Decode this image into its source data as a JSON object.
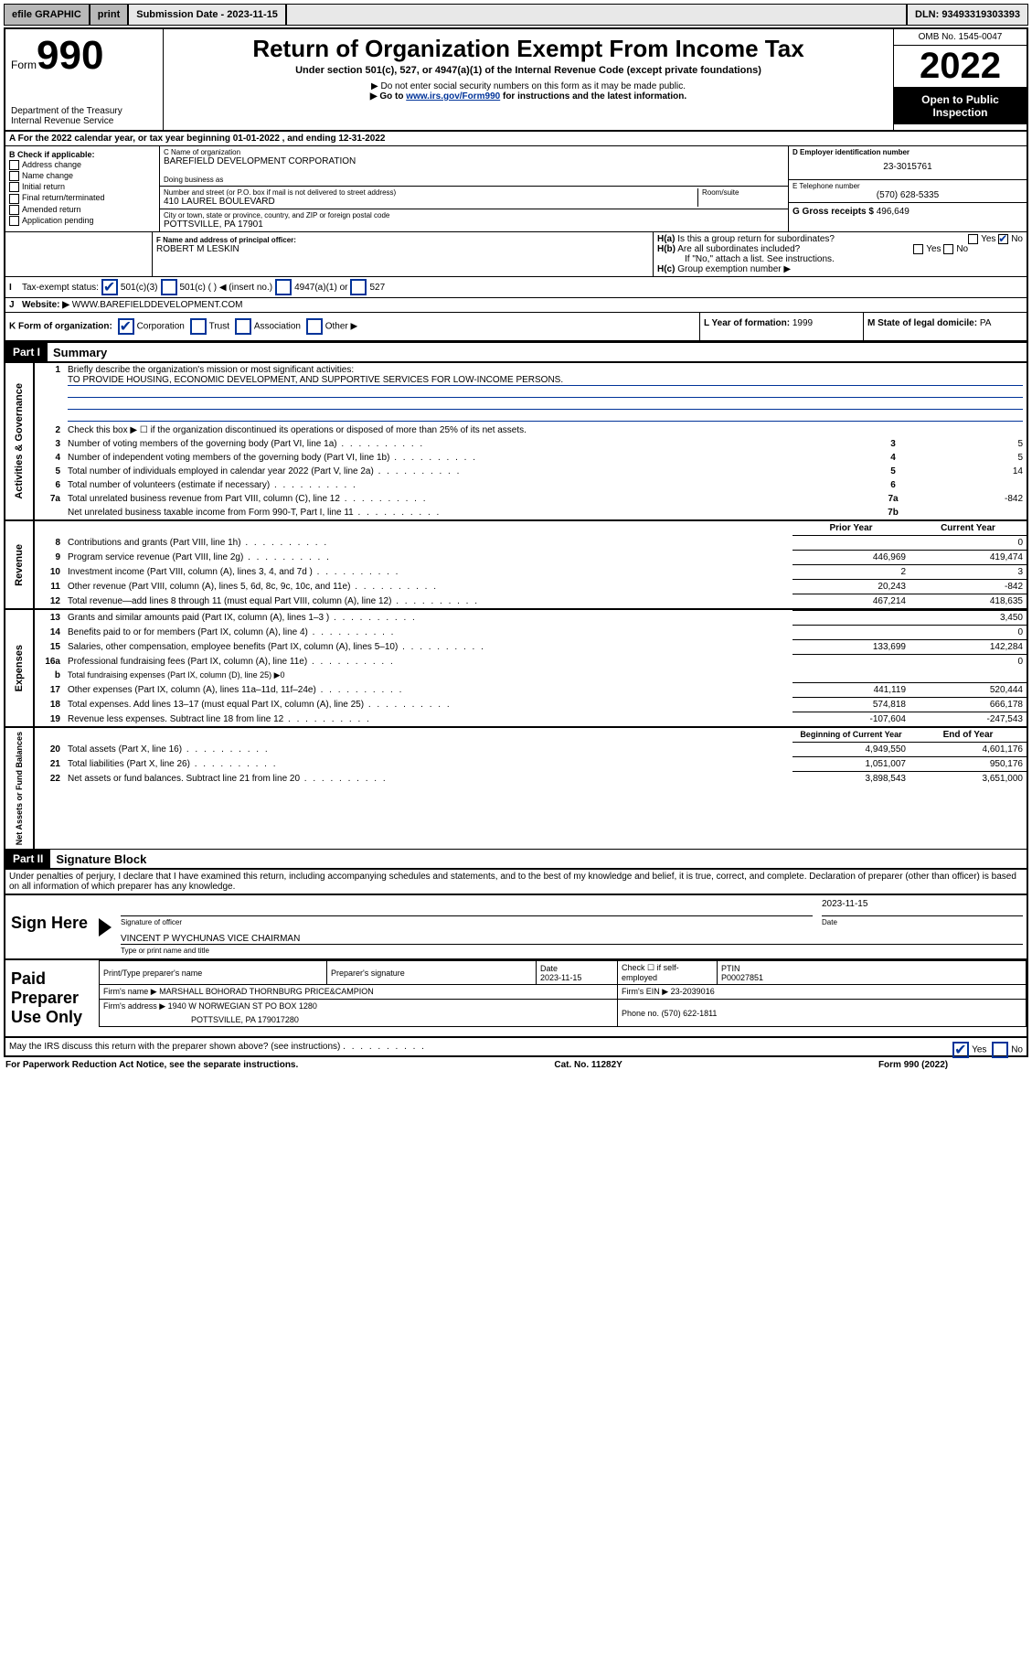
{
  "topbar": {
    "efile": "efile GRAPHIC",
    "print": "print",
    "sub_label": "Submission Date - 2023-11-15",
    "dln": "DLN: 93493319303393"
  },
  "header": {
    "form_word": "Form",
    "form_num": "990",
    "dept": "Department of the Treasury",
    "irs": "Internal Revenue Service",
    "title": "Return of Organization Exempt From Income Tax",
    "sub1": "Under section 501(c), 527, or 4947(a)(1) of the Internal Revenue Code (except private foundations)",
    "note1": "▶ Do not enter social security numbers on this form as it may be made public.",
    "note2_pre": "▶ Go to ",
    "note2_link": "www.irs.gov/Form990",
    "note2_post": " for instructions and the latest information.",
    "omb": "OMB No. 1545-0047",
    "year": "2022",
    "open": "Open to Public Inspection"
  },
  "periodA": "For the 2022 calendar year, or tax year beginning 01-01-2022   , and ending 12-31-2022",
  "boxB": {
    "title": "B Check if applicable:",
    "items": [
      "Address change",
      "Name change",
      "Initial return",
      "Final return/terminated",
      "Amended return",
      "Application pending"
    ]
  },
  "boxC": {
    "name_label": "C Name of organization",
    "org_name": "BAREFIELD DEVELOPMENT CORPORATION",
    "dba_label": "Doing business as",
    "street_label": "Number and street (or P.O. box if mail is not delivered to street address)",
    "room_label": "Room/suite",
    "street": "410 LAUREL BOULEVARD",
    "city_label": "City or town, state or province, country, and ZIP or foreign postal code",
    "city": "POTTSVILLE, PA  17901"
  },
  "boxD": {
    "label": "D Employer identification number",
    "value": "23-3015761"
  },
  "boxE": {
    "label": "E Telephone number",
    "value": "(570) 628-5335"
  },
  "boxG": {
    "label": "G Gross receipts $",
    "value": "496,649"
  },
  "boxF": {
    "label": "F Name and address of principal officer:",
    "name": "ROBERT M LESKIN"
  },
  "boxH": {
    "a": "Is this a group return for subordinates?",
    "b": "Are all subordinates included?",
    "note": "If \"No,\" attach a list. See instructions.",
    "c": "Group exemption number ▶"
  },
  "boxI": {
    "label": "Tax-exempt status:",
    "opts": [
      "501(c)(3)",
      "501(c) (  ) ◀ (insert no.)",
      "4947(a)(1) or",
      "527"
    ]
  },
  "boxJ": {
    "label": "Website: ▶",
    "value": "WWW.BAREFIELDDEVELOPMENT.COM"
  },
  "boxK": {
    "label": "K Form of organization:",
    "opts": [
      "Corporation",
      "Trust",
      "Association",
      "Other ▶"
    ]
  },
  "boxL": {
    "label": "L Year of formation:",
    "value": "1999"
  },
  "boxM": {
    "label": "M State of legal domicile:",
    "value": "PA"
  },
  "part1": {
    "label": "Part I",
    "title": "Summary"
  },
  "summary": {
    "l1_label": "Briefly describe the organization's mission or most significant activities:",
    "l1_text": "TO PROVIDE HOUSING, ECONOMIC DEVELOPMENT, AND SUPPORTIVE SERVICES FOR LOW-INCOME PERSONS.",
    "l2": "Check this box ▶ ☐  if the organization discontinued its operations or disposed of more than 25% of its net assets.",
    "rows_gov": [
      {
        "n": "3",
        "t": "Number of voting members of the governing body (Part VI, line 1a)",
        "box": "3",
        "v": "5"
      },
      {
        "n": "4",
        "t": "Number of independent voting members of the governing body (Part VI, line 1b)",
        "box": "4",
        "v": "5"
      },
      {
        "n": "5",
        "t": "Total number of individuals employed in calendar year 2022 (Part V, line 2a)",
        "box": "5",
        "v": "14"
      },
      {
        "n": "6",
        "t": "Total number of volunteers (estimate if necessary)",
        "box": "6",
        "v": ""
      },
      {
        "n": "7a",
        "t": "Total unrelated business revenue from Part VIII, column (C), line 12",
        "box": "7a",
        "v": "-842"
      },
      {
        "n": "",
        "t": "Net unrelated business taxable income from Form 990-T, Part I, line 11",
        "box": "7b",
        "v": ""
      }
    ],
    "hdr_prior": "Prior Year",
    "hdr_current": "Current Year",
    "rows_rev": [
      {
        "n": "8",
        "t": "Contributions and grants (Part VIII, line 1h)",
        "p": "",
        "c": "0"
      },
      {
        "n": "9",
        "t": "Program service revenue (Part VIII, line 2g)",
        "p": "446,969",
        "c": "419,474"
      },
      {
        "n": "10",
        "t": "Investment income (Part VIII, column (A), lines 3, 4, and 7d )",
        "p": "2",
        "c": "3"
      },
      {
        "n": "11",
        "t": "Other revenue (Part VIII, column (A), lines 5, 6d, 8c, 9c, 10c, and 11e)",
        "p": "20,243",
        "c": "-842"
      },
      {
        "n": "12",
        "t": "Total revenue—add lines 8 through 11 (must equal Part VIII, column (A), line 12)",
        "p": "467,214",
        "c": "418,635"
      }
    ],
    "rows_exp": [
      {
        "n": "13",
        "t": "Grants and similar amounts paid (Part IX, column (A), lines 1–3 )",
        "p": "",
        "c": "3,450"
      },
      {
        "n": "14",
        "t": "Benefits paid to or for members (Part IX, column (A), line 4)",
        "p": "",
        "c": "0"
      },
      {
        "n": "15",
        "t": "Salaries, other compensation, employee benefits (Part IX, column (A), lines 5–10)",
        "p": "133,699",
        "c": "142,284"
      },
      {
        "n": "16a",
        "t": "Professional fundraising fees (Part IX, column (A), line 11e)",
        "p": "",
        "c": "0"
      },
      {
        "n": "b",
        "t": "Total fundraising expenses (Part IX, column (D), line 25) ▶0",
        "p": "—",
        "c": "—"
      },
      {
        "n": "17",
        "t": "Other expenses (Part IX, column (A), lines 11a–11d, 11f–24e)",
        "p": "441,119",
        "c": "520,444"
      },
      {
        "n": "18",
        "t": "Total expenses. Add lines 13–17 (must equal Part IX, column (A), line 25)",
        "p": "574,818",
        "c": "666,178"
      },
      {
        "n": "19",
        "t": "Revenue less expenses. Subtract line 18 from line 12",
        "p": "-107,604",
        "c": "-247,543"
      }
    ],
    "hdr_begin": "Beginning of Current Year",
    "hdr_end": "End of Year",
    "rows_net": [
      {
        "n": "20",
        "t": "Total assets (Part X, line 16)",
        "p": "4,949,550",
        "c": "4,601,176"
      },
      {
        "n": "21",
        "t": "Total liabilities (Part X, line 26)",
        "p": "1,051,007",
        "c": "950,176"
      },
      {
        "n": "22",
        "t": "Net assets or fund balances. Subtract line 21 from line 20",
        "p": "3,898,543",
        "c": "3,651,000"
      }
    ]
  },
  "side_labels": {
    "gov": "Activities & Governance",
    "rev": "Revenue",
    "exp": "Expenses",
    "net": "Net Assets or Fund Balances"
  },
  "part2": {
    "label": "Part II",
    "title": "Signature Block"
  },
  "sig": {
    "penalty": "Under penalties of perjury, I declare that I have examined this return, including accompanying schedules and statements, and to the best of my knowledge and belief, it is true, correct, and complete. Declaration of preparer (other than officer) is based on all information of which preparer has any knowledge.",
    "sign_here": "Sign Here",
    "sig_officer": "Signature of officer",
    "sig_date": "2023-11-15",
    "date_label": "Date",
    "officer_name": "VINCENT P WYCHUNAS  VICE CHAIRMAN",
    "name_title": "Type or print name and title"
  },
  "preparer": {
    "title": "Paid Preparer Use Only",
    "h1": "Print/Type preparer's name",
    "h2": "Preparer's signature",
    "h3": "Date",
    "h3v": "2023-11-15",
    "h4": "Check ☐ if self-employed",
    "h5": "PTIN",
    "h5v": "P00027851",
    "firm_name_l": "Firm's name    ▶",
    "firm_name": "MARSHALL BOHORAD THORNBURG PRICE&CAMPION",
    "firm_ein_l": "Firm's EIN ▶",
    "firm_ein": "23-2039016",
    "firm_addr_l": "Firm's address ▶",
    "firm_addr": "1940 W NORWEGIAN ST PO BOX 1280",
    "firm_city": "POTTSVILLE, PA  179017280",
    "phone_l": "Phone no.",
    "phone": "(570) 622-1811"
  },
  "mayirs": "May the IRS discuss this return with the preparer shown above? (see instructions)",
  "footer": {
    "left": "For Paperwork Reduction Act Notice, see the separate instructions.",
    "mid": "Cat. No. 11282Y",
    "right": "Form 990 (2022)"
  }
}
